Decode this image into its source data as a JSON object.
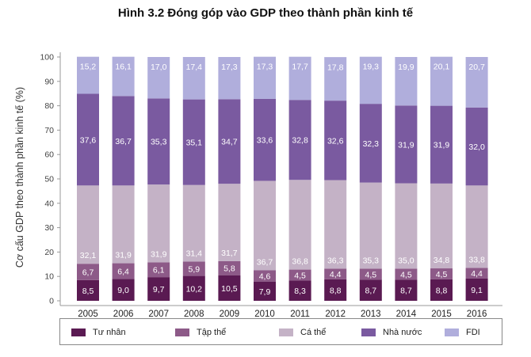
{
  "title": "Hình 3.2 Đóng góp vào GDP theo thành phần kinh tế",
  "colors": {
    "tu_nhan": "#5a1a52",
    "tap_the": "#8d5a88",
    "ca_the": "#c4b2c6",
    "nha_nuoc": "#7a5aa0",
    "fdi": "#b0aedc"
  },
  "chart_data": {
    "type": "bar",
    "stacked": true,
    "categories": [
      "2005",
      "2006",
      "2007",
      "2008",
      "2009",
      "2010",
      "2011",
      "2012",
      "2013",
      "2014",
      "2015",
      "2016"
    ],
    "ylabel": "Cơ cấu GDP theo thành phần kinh tế (%)",
    "xlabel": "",
    "ylim": [
      0,
      100
    ],
    "yticks": [
      0,
      10,
      20,
      30,
      40,
      50,
      60,
      70,
      80,
      90,
      100
    ],
    "grid": false,
    "legend_position": "bottom",
    "series": [
      {
        "name": "Tư nhân",
        "values": [
          8.5,
          9.0,
          9.7,
          10.2,
          10.5,
          7.9,
          8.3,
          8.8,
          8.7,
          8.7,
          8.8,
          9.1
        ],
        "labels": [
          "8,5",
          "9,0",
          "9,7",
          "10,2",
          "10,5",
          "7,9",
          "8,3",
          "8,8",
          "8,7",
          "8,7",
          "8,8",
          "9,1"
        ]
      },
      {
        "name": "Tập thể",
        "values": [
          6.7,
          6.4,
          6.1,
          5.9,
          5.8,
          4.6,
          4.5,
          4.4,
          4.5,
          4.5,
          4.5,
          4.4
        ],
        "labels": [
          "6,7",
          "6,4",
          "6,1",
          "5,9",
          "5,8",
          "4,6",
          "4,5",
          "4,4",
          "4,5",
          "4,5",
          "4,5",
          "4,4"
        ]
      },
      {
        "name": "Cá thể",
        "values": [
          32.1,
          31.9,
          31.9,
          31.4,
          31.7,
          36.7,
          36.8,
          36.3,
          35.3,
          35.0,
          34.8,
          33.8
        ],
        "labels": [
          "32,1",
          "31,9",
          "31,9",
          "31,4",
          "31,7",
          "36,7",
          "36,8",
          "36,3",
          "35,3",
          "35,0",
          "34,8",
          "33,8"
        ]
      },
      {
        "name": "Nhà nước",
        "values": [
          37.6,
          36.7,
          35.3,
          35.1,
          34.7,
          33.6,
          32.8,
          32.6,
          32.3,
          31.9,
          31.9,
          32.0
        ],
        "labels": [
          "37,6",
          "36,7",
          "35,3",
          "35,1",
          "34,7",
          "33,6",
          "32,8",
          "32,6",
          "32,3",
          "31,9",
          "31,9",
          "32,0"
        ]
      },
      {
        "name": "FDI",
        "values": [
          15.2,
          16.1,
          17.0,
          17.4,
          17.3,
          17.3,
          17.7,
          17.8,
          19.3,
          19.9,
          20.1,
          20.7
        ],
        "labels": [
          "15,2",
          "16,1",
          "17,0",
          "17,4",
          "17,3",
          "17,3",
          "17,7",
          "17,8",
          "19,3",
          "19,9",
          "20,1",
          "20,7"
        ]
      }
    ]
  }
}
